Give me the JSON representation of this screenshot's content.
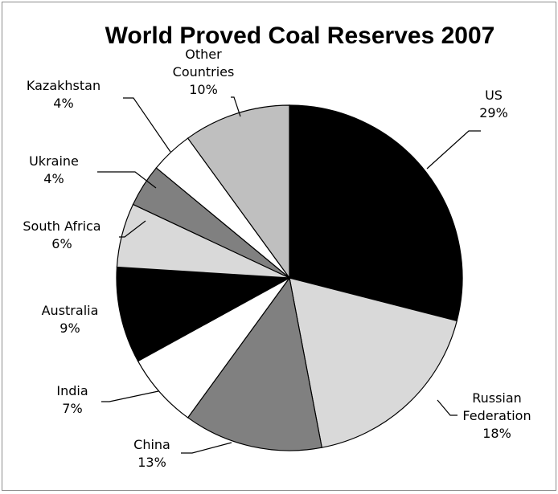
{
  "chart_data": {
    "type": "pie",
    "title": "World Proved Coal Reserves 2007",
    "start_angle_deg": 0,
    "direction": "clockwise",
    "slices": [
      {
        "label_lines": [
          "US"
        ],
        "value_text": "29%",
        "value": 29,
        "color": "#000000"
      },
      {
        "label_lines": [
          "Russian",
          "Federation"
        ],
        "value_text": "18%",
        "value": 18,
        "color": "#d9d9d9"
      },
      {
        "label_lines": [
          "China"
        ],
        "value_text": "13%",
        "value": 13,
        "color": "#808080"
      },
      {
        "label_lines": [
          "India"
        ],
        "value_text": "7%",
        "value": 7,
        "color": "#ffffff"
      },
      {
        "label_lines": [
          "Australia"
        ],
        "value_text": "9%",
        "value": 9,
        "color": "#000000"
      },
      {
        "label_lines": [
          "South Africa"
        ],
        "value_text": "6%",
        "value": 6,
        "color": "#d9d9d9"
      },
      {
        "label_lines": [
          "Ukraine"
        ],
        "value_text": "4%",
        "value": 4,
        "color": "#808080"
      },
      {
        "label_lines": [
          "Kazakhstan"
        ],
        "value_text": "4%",
        "value": 4,
        "color": "#ffffff"
      },
      {
        "label_lines": [
          "Other",
          "Countries"
        ],
        "value_text": "10%",
        "value": 10,
        "color": "#bfbfbf"
      }
    ]
  }
}
